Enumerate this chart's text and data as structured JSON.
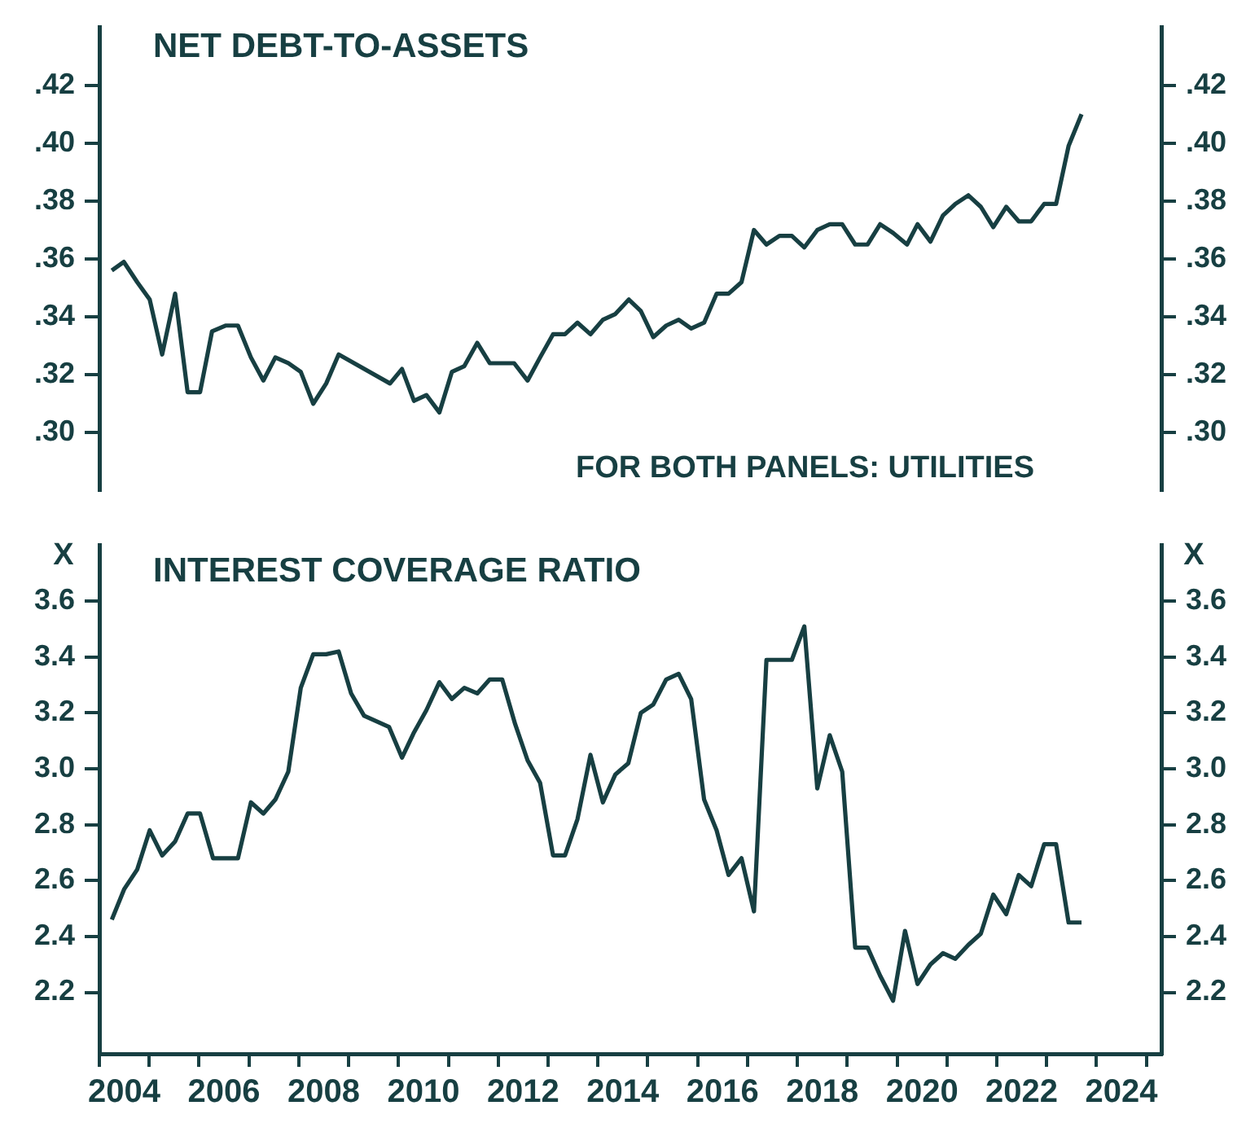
{
  "chart_data": [
    {
      "type": "line",
      "title": "NET DEBT-TO-ASSETS",
      "annotations": [
        "FOR BOTH PANELS: UTILITIES"
      ],
      "xlim": [
        2004,
        2025.3
      ],
      "tick_labels": "y",
      "ylim": [
        0.28,
        0.44
      ],
      "yticks": [
        {
          "value": 0.3,
          "label": ".30"
        },
        {
          "value": 0.32,
          "label": ".32"
        },
        {
          "value": 0.34,
          "label": ".34"
        },
        {
          "value": 0.36,
          "label": ".36"
        },
        {
          "value": 0.38,
          "label": ".38"
        },
        {
          "value": 0.4,
          "label": ".40"
        },
        {
          "value": 0.42,
          "label": ".42"
        }
      ],
      "y2lim": [
        0.28,
        0.44
      ],
      "y2ticks": [
        {
          "value": 0.3,
          "label": ".30"
        },
        {
          "value": 0.32,
          "label": ".32"
        },
        {
          "value": 0.34,
          "label": ".34"
        },
        {
          "value": 0.36,
          "label": ".36"
        },
        {
          "value": 0.38,
          "label": ".38"
        },
        {
          "value": 0.4,
          "label": ".40"
        },
        {
          "value": 0.42,
          "label": ".42"
        }
      ],
      "series": [
        {
          "color": "#173f42",
          "x": [
            2004.25,
            2004.49,
            2004.76,
            2005.01,
            2005.26,
            2005.52,
            2005.77,
            2006.02,
            2006.26,
            2006.53,
            2006.78,
            2007.04,
            2007.29,
            2007.53,
            2007.79,
            2008.04,
            2008.29,
            2008.55,
            2008.8,
            2009.83,
            2010.07,
            2010.31,
            2010.56,
            2010.82,
            2011.07,
            2011.32,
            2011.58,
            2011.83,
            2012.32,
            2012.59,
            2012.84,
            2013.1,
            2013.34,
            2013.59,
            2013.85,
            2014.1,
            2014.35,
            2014.62,
            2014.86,
            2015.11,
            2015.37,
            2015.62,
            2015.87,
            2016.13,
            2016.38,
            2016.62,
            2016.88,
            2017.13,
            2017.38,
            2017.64,
            2017.89,
            2018.14,
            2018.4,
            2018.65,
            2018.9,
            2019.16,
            2019.41,
            2019.66,
            2019.92,
            2020.2,
            2020.41,
            2020.67,
            2020.92,
            2021.17,
            2021.43,
            2021.68,
            2021.93,
            2022.19,
            2022.44,
            2022.69,
            2022.95,
            2023.19,
            2023.44,
            2023.7
          ],
          "values": [
            0.356,
            0.359,
            0.352,
            0.346,
            0.327,
            0.348,
            0.314,
            0.314,
            0.335,
            0.337,
            0.337,
            0.326,
            0.318,
            0.326,
            0.324,
            0.321,
            0.31,
            0.317,
            0.327,
            0.317,
            0.322,
            0.311,
            0.313,
            0.307,
            0.321,
            0.323,
            0.331,
            0.324,
            0.324,
            0.318,
            0.326,
            0.334,
            0.334,
            0.338,
            0.334,
            0.339,
            0.341,
            0.346,
            0.342,
            0.333,
            0.337,
            0.339,
            0.336,
            0.338,
            0.348,
            0.348,
            0.352,
            0.37,
            0.365,
            0.368,
            0.368,
            0.364,
            0.37,
            0.372,
            0.372,
            0.365,
            0.365,
            0.372,
            0.369,
            0.365,
            0.372,
            0.366,
            0.375,
            0.379,
            0.382,
            0.378,
            0.371,
            0.378,
            0.373,
            0.373,
            0.379,
            0.379,
            0.399,
            0.41
          ]
        }
      ]
    },
    {
      "type": "line",
      "title": "INTEREST COVERAGE RATIO",
      "ylabel": "X",
      "y2label": "X",
      "xlim": [
        2004,
        2025.3
      ],
      "xticks": [
        {
          "value": 2004,
          "label": null
        },
        {
          "value": 2004.5,
          "label": "2004"
        },
        {
          "value": 2005,
          "label": null
        },
        {
          "value": 2006,
          "label": null
        },
        {
          "value": 2006.5,
          "label": "2006"
        },
        {
          "value": 2007,
          "label": null
        },
        {
          "value": 2008,
          "label": null
        },
        {
          "value": 2008.5,
          "label": "2008"
        },
        {
          "value": 2009,
          "label": null
        },
        {
          "value": 2010,
          "label": null
        },
        {
          "value": 2010.5,
          "label": "2010"
        },
        {
          "value": 2011,
          "label": null
        },
        {
          "value": 2012,
          "label": null
        },
        {
          "value": 2012.5,
          "label": "2012"
        },
        {
          "value": 2013,
          "label": null
        },
        {
          "value": 2014,
          "label": null
        },
        {
          "value": 2014.5,
          "label": "2014"
        },
        {
          "value": 2015,
          "label": null
        },
        {
          "value": 2016,
          "label": null
        },
        {
          "value": 2016.5,
          "label": "2016"
        },
        {
          "value": 2017,
          "label": null
        },
        {
          "value": 2018,
          "label": null
        },
        {
          "value": 2018.5,
          "label": "2018"
        },
        {
          "value": 2019,
          "label": null
        },
        {
          "value": 2020,
          "label": null
        },
        {
          "value": 2020.5,
          "label": "2020"
        },
        {
          "value": 2021,
          "label": null
        },
        {
          "value": 2022,
          "label": null
        },
        {
          "value": 2022.5,
          "label": "2022"
        },
        {
          "value": 2023,
          "label": null
        },
        {
          "value": 2024,
          "label": null
        },
        {
          "value": 2024.5,
          "label": "2024"
        },
        {
          "value": 2025,
          "label": null
        }
      ],
      "ylim": [
        1.98,
        3.8
      ],
      "yticks": [
        2.2,
        2.4,
        2.6,
        2.8,
        {
          "value": 3,
          "label": "3.0"
        },
        3.2,
        3.4,
        3.6
      ],
      "y2lim": [
        1.98,
        3.8
      ],
      "y2ticks": [
        2.2,
        2.4,
        2.6,
        2.8,
        {
          "value": 3,
          "label": "3.0"
        },
        3.2,
        3.4,
        3.6
      ],
      "series": [
        {
          "color": "#173f42",
          "x": [
            2004.25,
            2004.5,
            2004.76,
            2005.01,
            2005.26,
            2005.52,
            2005.77,
            2006.02,
            2006.28,
            2006.78,
            2007.04,
            2007.29,
            2007.53,
            2007.79,
            2008.04,
            2008.29,
            2008.55,
            2008.8,
            2009.05,
            2009.31,
            2009.81,
            2010.07,
            2010.31,
            2010.56,
            2010.82,
            2011.07,
            2011.32,
            2011.58,
            2011.83,
            2012.08,
            2012.34,
            2012.59,
            2012.84,
            2013.1,
            2013.34,
            2013.59,
            2013.85,
            2014.1,
            2014.35,
            2014.61,
            2014.86,
            2015.11,
            2015.37,
            2015.62,
            2015.87,
            2016.13,
            2016.38,
            2016.62,
            2016.88,
            2017.13,
            2017.38,
            2017.89,
            2018.14,
            2018.4,
            2018.65,
            2018.9,
            2019.16,
            2019.41,
            2019.66,
            2019.92,
            2020.16,
            2020.41,
            2020.67,
            2020.92,
            2021.17,
            2021.43,
            2021.68,
            2021.93,
            2022.19,
            2022.44,
            2022.69,
            2022.95,
            2023.19,
            2023.44,
            2023.7
          ],
          "values": [
            2.46,
            2.57,
            2.64,
            2.78,
            2.69,
            2.74,
            2.84,
            2.84,
            2.68,
            2.68,
            2.88,
            2.84,
            2.89,
            2.99,
            3.29,
            3.41,
            3.41,
            3.42,
            3.27,
            3.19,
            3.15,
            3.04,
            3.13,
            3.21,
            3.31,
            3.25,
            3.29,
            3.27,
            3.32,
            3.32,
            3.16,
            3.03,
            2.95,
            2.69,
            2.69,
            2.82,
            3.05,
            2.88,
            2.98,
            3.02,
            3.2,
            3.23,
            3.32,
            3.34,
            3.25,
            2.89,
            2.78,
            2.62,
            2.68,
            2.49,
            3.39,
            3.39,
            3.51,
            2.93,
            3.12,
            2.99,
            2.36,
            2.36,
            2.26,
            2.17,
            2.42,
            2.23,
            2.3,
            2.34,
            2.32,
            2.37,
            2.41,
            2.55,
            2.48,
            2.62,
            2.58,
            2.73,
            2.73,
            2.45,
            2.45
          ]
        }
      ]
    }
  ]
}
